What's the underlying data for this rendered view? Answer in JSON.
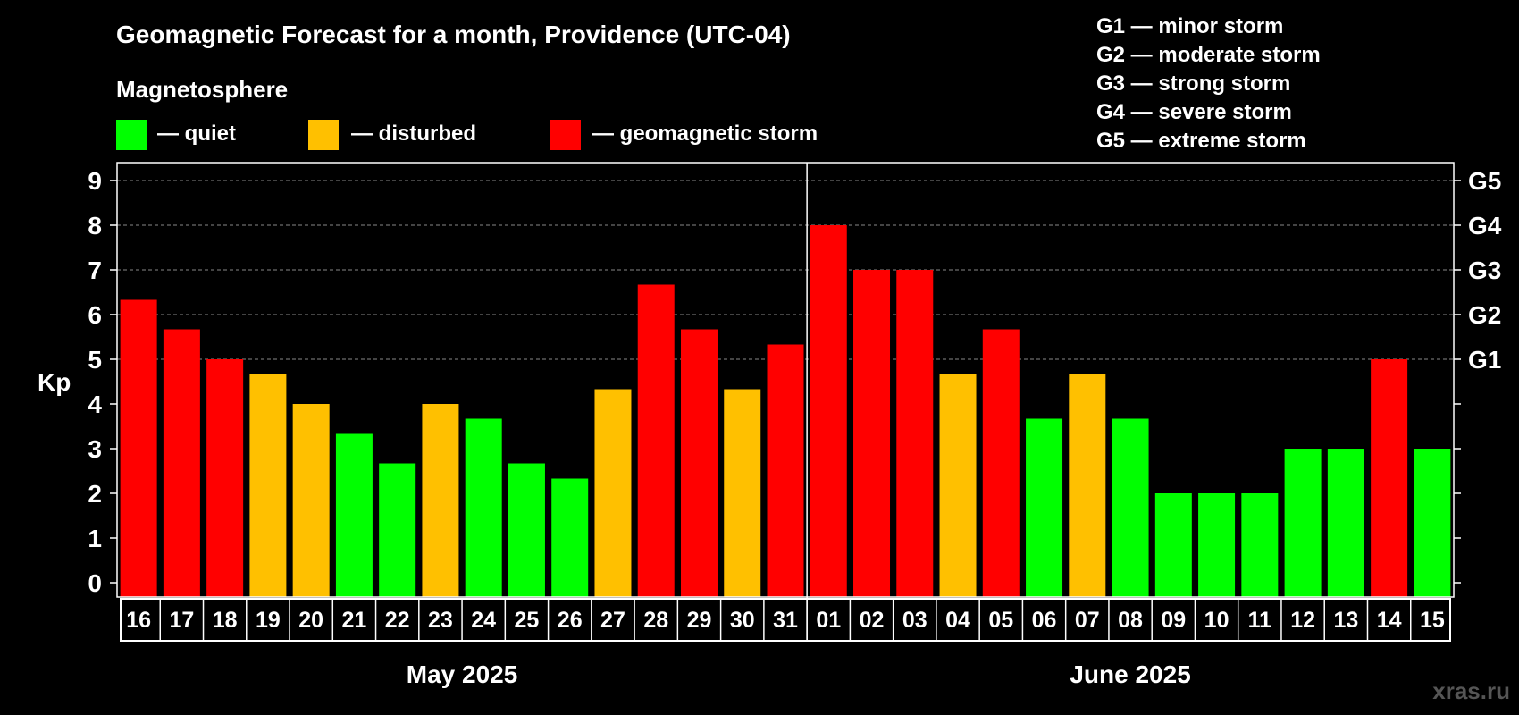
{
  "chart_data": {
    "type": "bar",
    "title": "Geomagnetic Forecast for a month, Providence (UTC-04)",
    "ylabel": "Kp",
    "ylim": [
      0,
      9
    ],
    "yticks": [
      0,
      1,
      2,
      3,
      4,
      5,
      6,
      7,
      8,
      9
    ],
    "legend_title": "Magnetosphere",
    "legend": [
      {
        "label": "— quiet",
        "color": "#00ff00"
      },
      {
        "label": "— disturbed",
        "color": "#ffc000"
      },
      {
        "label": "— geomagnetic storm",
        "color": "#ff0000"
      }
    ],
    "storm_levels": [
      {
        "label": "G1",
        "kp": 5,
        "desc": "G1 — minor storm"
      },
      {
        "label": "G2",
        "kp": 6,
        "desc": "G2 — moderate storm"
      },
      {
        "label": "G3",
        "kp": 7,
        "desc": "G3 — strong storm"
      },
      {
        "label": "G4",
        "kp": 8,
        "desc": "G4 — severe storm"
      },
      {
        "label": "G5",
        "kp": 9,
        "desc": "G5 — extreme storm"
      }
    ],
    "months": [
      {
        "label": "May 2025",
        "start_index": 0,
        "count": 16
      },
      {
        "label": "June 2025",
        "start_index": 16,
        "count": 15
      }
    ],
    "categories": [
      "16",
      "17",
      "18",
      "19",
      "20",
      "21",
      "22",
      "23",
      "24",
      "25",
      "26",
      "27",
      "28",
      "29",
      "30",
      "31",
      "01",
      "02",
      "03",
      "04",
      "05",
      "06",
      "07",
      "08",
      "09",
      "10",
      "11",
      "12",
      "13",
      "14",
      "15"
    ],
    "values": [
      6.33,
      5.67,
      5,
      4.67,
      4,
      3.33,
      2.67,
      4,
      3.67,
      2.67,
      2.33,
      4.33,
      6.67,
      5.67,
      4.33,
      5.33,
      8,
      7,
      7,
      4.67,
      5.67,
      3.67,
      4.67,
      3.67,
      2,
      2,
      2,
      3,
      3,
      5,
      3
    ],
    "status": [
      "storm",
      "storm",
      "storm",
      "disturbed",
      "disturbed",
      "quiet",
      "quiet",
      "disturbed",
      "quiet",
      "quiet",
      "quiet",
      "disturbed",
      "storm",
      "storm",
      "disturbed",
      "storm",
      "storm",
      "storm",
      "storm",
      "disturbed",
      "storm",
      "quiet",
      "disturbed",
      "quiet",
      "quiet",
      "quiet",
      "quiet",
      "quiet",
      "quiet",
      "storm",
      "quiet"
    ],
    "colors": {
      "quiet": "#00ff00",
      "disturbed": "#ffc000",
      "storm": "#ff0000"
    },
    "watermark": "xras.ru"
  }
}
